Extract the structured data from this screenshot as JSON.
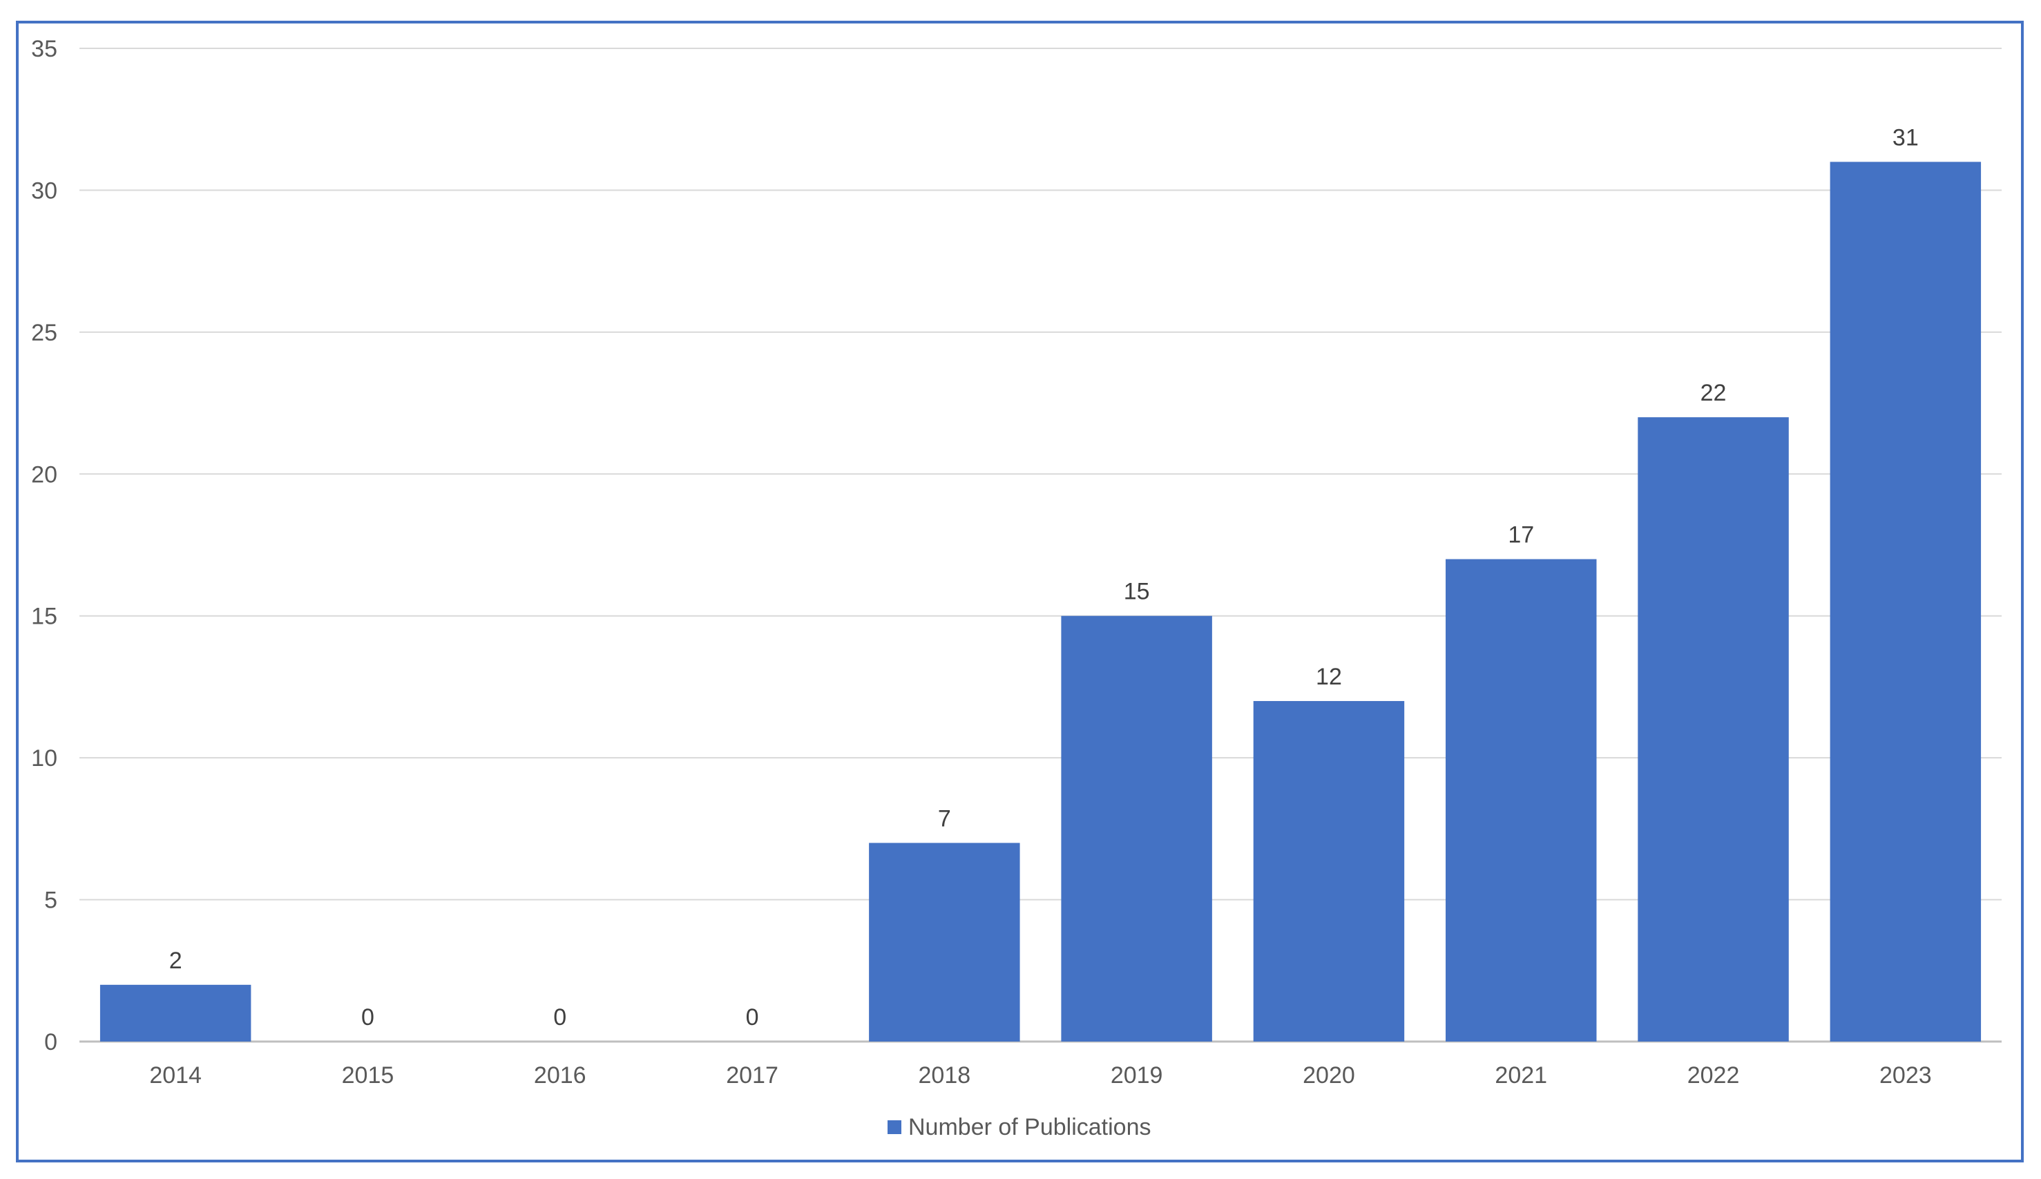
{
  "chart_data": {
    "type": "bar",
    "categories": [
      "2014",
      "2015",
      "2016",
      "2017",
      "2018",
      "2019",
      "2020",
      "2021",
      "2022",
      "2023"
    ],
    "series": [
      {
        "name": "Number of Publications",
        "values": [
          2,
          0,
          0,
          0,
          7,
          15,
          12,
          17,
          22,
          31
        ],
        "color": "#4472C4"
      }
    ],
    "data_labels": [
      "2",
      "0",
      "0",
      "0",
      "7",
      "15",
      "12",
      "17",
      "22",
      "31"
    ],
    "ylim": [
      0,
      35
    ],
    "yticks": [
      "0",
      "5",
      "10",
      "15",
      "20",
      "25",
      "30",
      "35"
    ],
    "grid": true,
    "legend_position": "bottom",
    "title": "",
    "xlabel": "",
    "ylabel": ""
  },
  "colors": {
    "bar": "#4472C4",
    "frame": "#4472C4",
    "gridline": "#D9D9D9",
    "axis_text": "#595959",
    "data_label_text": "#404040"
  }
}
